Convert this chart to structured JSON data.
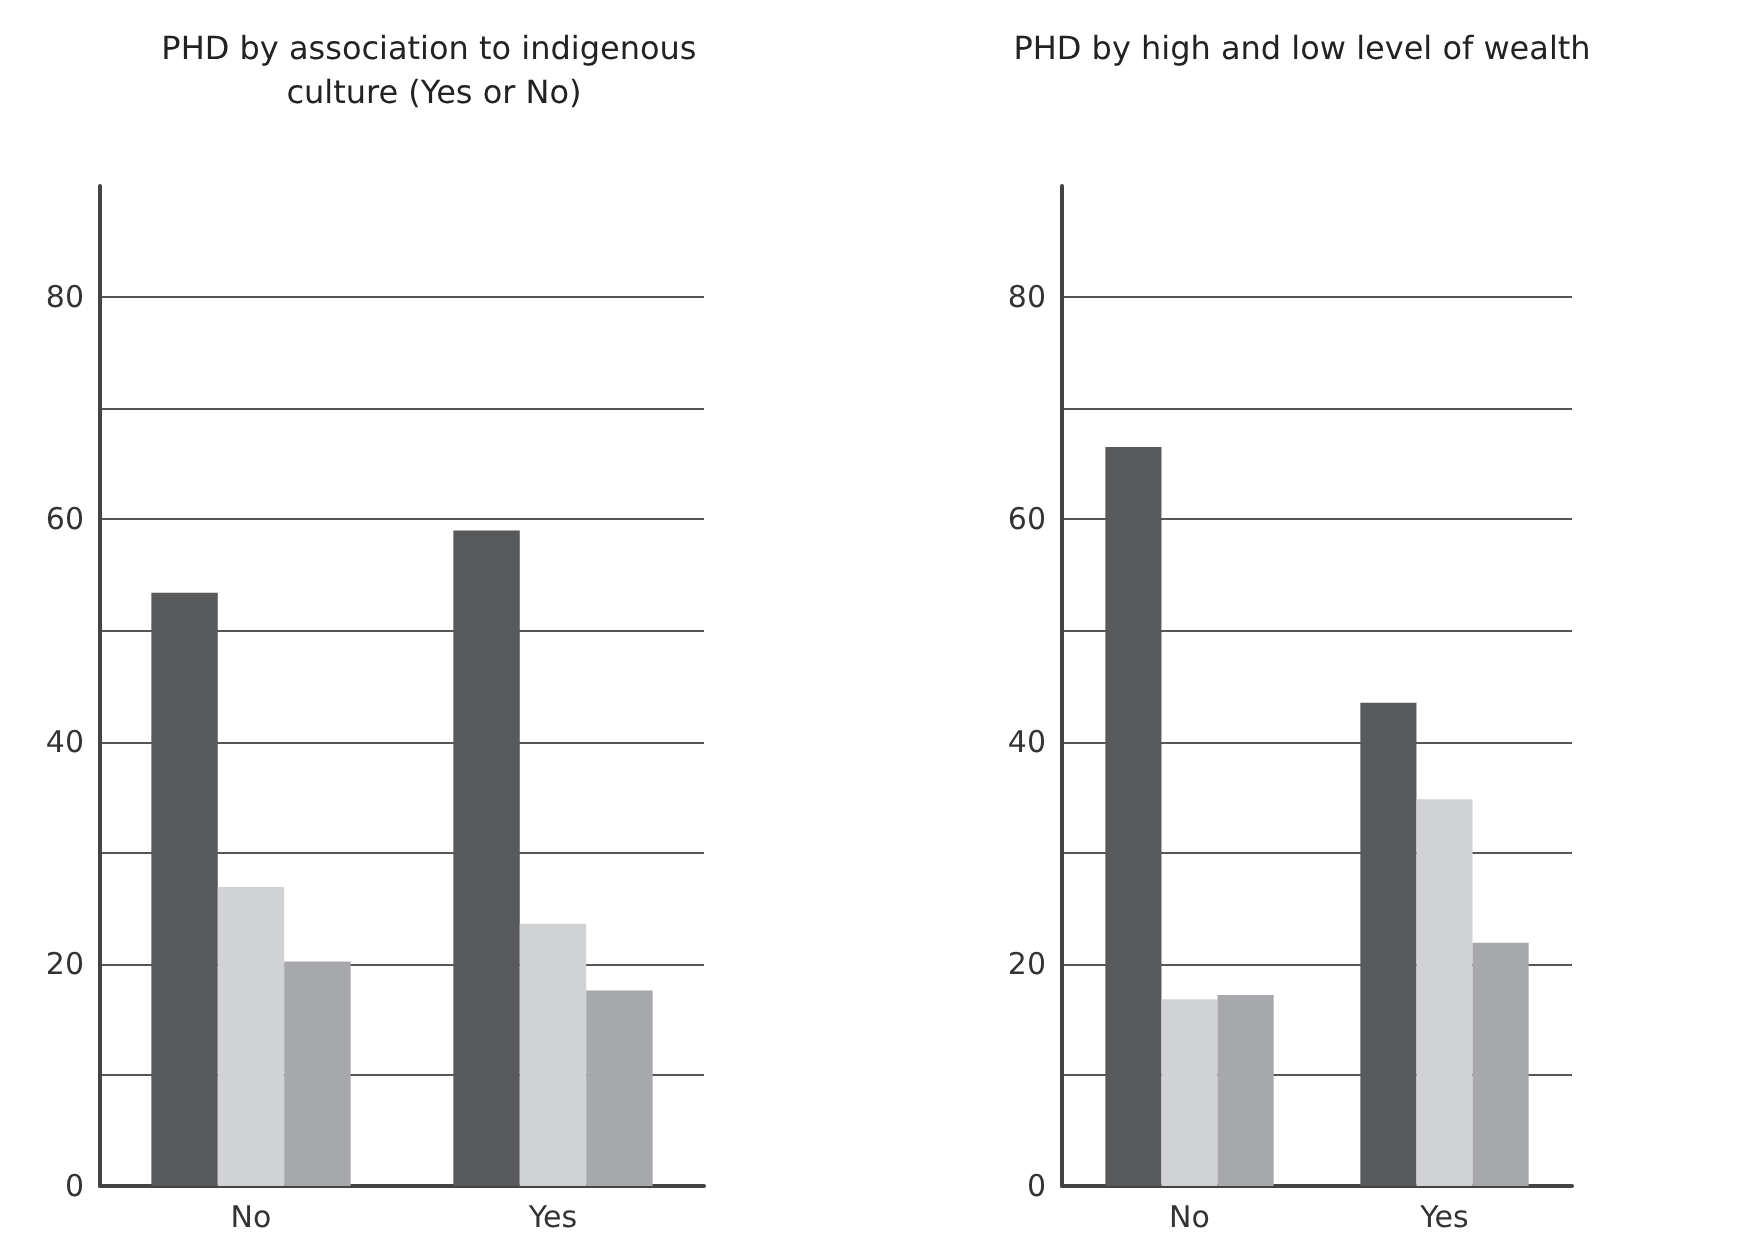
{
  "chart_data": [
    {
      "type": "bar",
      "title": "PHD by association to indigenous culture (Yes or No)",
      "categories": [
        "No",
        "Yes"
      ],
      "series": [
        {
          "color": "#58595b",
          "values": [
            53.4,
            59.0
          ]
        },
        {
          "color": "#d1d2d4",
          "values": [
            26.9,
            23.6
          ]
        },
        {
          "color": "#a7a8ab",
          "values": [
            20.2,
            17.6
          ]
        }
      ],
      "ylim": [
        0,
        90
      ],
      "yticks": [
        0,
        {
          "value": 10,
          "label": null
        },
        20,
        {
          "value": 30,
          "label": null
        },
        40,
        {
          "value": 50,
          "label": null
        },
        60,
        {
          "value": 70,
          "label": null
        },
        80
      ],
      "grid": "y"
    },
    {
      "type": "bar",
      "title": "PHD by high and low level of wealth",
      "categories": [
        "No",
        "Yes"
      ],
      "series": [
        {
          "color": "#58595b",
          "values": [
            66.5,
            43.5
          ]
        },
        {
          "color": "#d1d2d4",
          "values": [
            16.8,
            34.8
          ]
        },
        {
          "color": "#a7a8ab",
          "values": [
            17.2,
            21.9
          ]
        }
      ],
      "ylim": [
        0,
        90
      ],
      "yticks": [
        0,
        {
          "value": 10,
          "label": null
        },
        20,
        {
          "value": 30,
          "label": null
        },
        40,
        {
          "value": 50,
          "label": null
        },
        60,
        {
          "value": 70,
          "label": null
        },
        80
      ],
      "grid": "y"
    }
  ]
}
